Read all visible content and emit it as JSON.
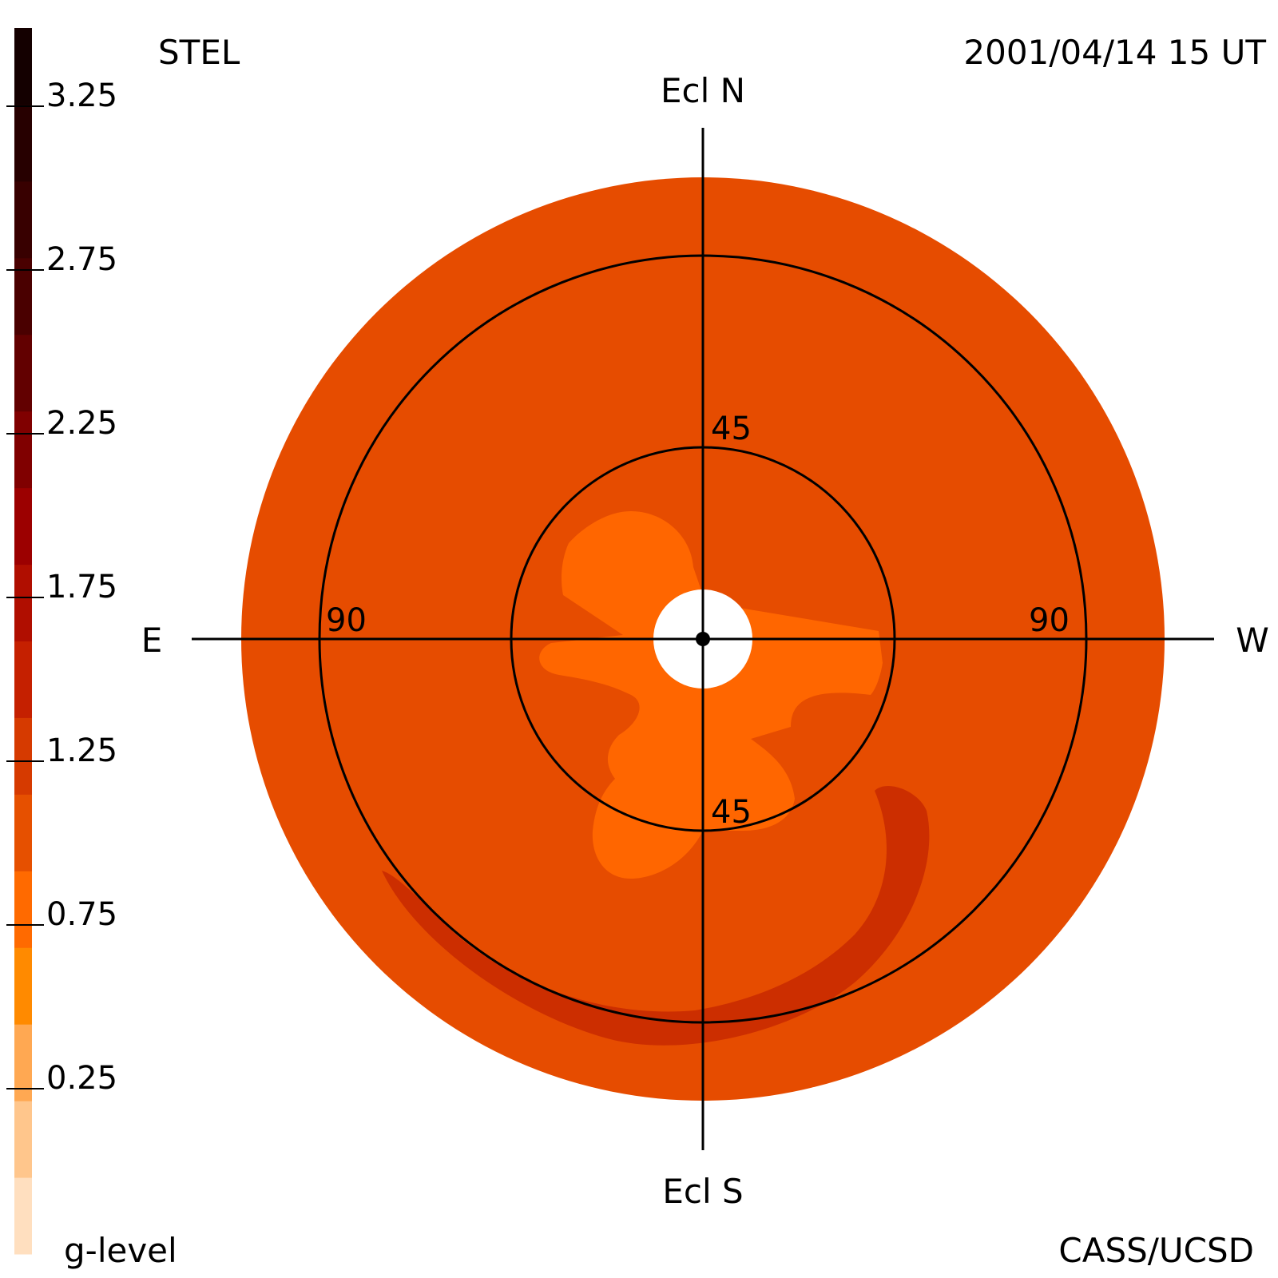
{
  "header": {
    "instrument": "STEL",
    "datetime": "2001/04/14 15 UT"
  },
  "footer": {
    "colorbar_label": "g-level",
    "credit": "CASS/UCSD"
  },
  "directions": {
    "north": "Ecl N",
    "south": "Ecl S",
    "east": "E",
    "west": "W"
  },
  "rings": {
    "inner_top": "45",
    "inner_bottom": "45",
    "outer_left": "90",
    "outer_right": "90"
  },
  "colorbar": {
    "tick_labels": [
      "3.25",
      "2.75",
      "2.25",
      "1.75",
      "1.25",
      "0.75",
      "0.25"
    ],
    "colors": [
      "#ffdfbf",
      "#ffc68c",
      "#ffa852",
      "#ff8a00",
      "#ff6a00",
      "#e65000",
      "#d63a00",
      "#c52000",
      "#b00e00",
      "#9c0000",
      "#800000",
      "#620000",
      "#4a0000",
      "#380000",
      "#270000",
      "#140000"
    ]
  },
  "map_colors": {
    "background_level": "#e64c00",
    "outer_fill": "#e64c00",
    "inner_bright": "#ff6600",
    "dense_arc": "#cc2e00",
    "occulter": "#ffffff",
    "line": "#000000"
  }
}
